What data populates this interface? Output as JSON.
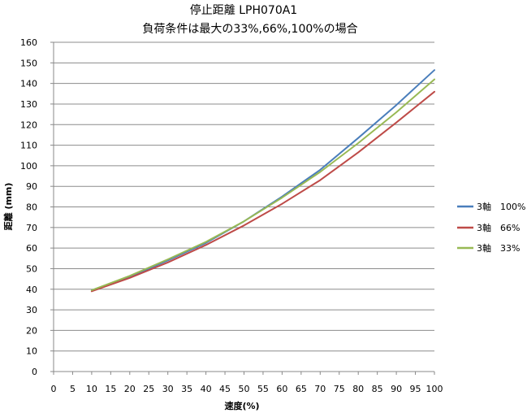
{
  "chart_data": {
    "type": "line",
    "title": "停止距離 LPH070A1",
    "subtitle": "負荷条件は最大の33%,66%,100%の場合",
    "xlabel": "速度(%)",
    "ylabel": "距離 (mm)",
    "xlim": [
      0,
      100
    ],
    "ylim": [
      0,
      160
    ],
    "x_ticks": [
      "0",
      "5",
      "10",
      "15",
      "20",
      "25",
      "30",
      "35",
      "40",
      "45",
      "50",
      "55",
      "60",
      "65",
      "70",
      "75",
      "80",
      "85",
      "90",
      "95",
      "100"
    ],
    "y_ticks": [
      "0",
      "10",
      "20",
      "30",
      "40",
      "50",
      "60",
      "70",
      "80",
      "90",
      "100",
      "110",
      "120",
      "130",
      "140",
      "150",
      "160"
    ],
    "grid": "horizontal",
    "legend_position": "right",
    "series": [
      {
        "name": "3軸　100%",
        "color": "#4a7ebb",
        "x": [
          10,
          20,
          30,
          40,
          50,
          60,
          70,
          80,
          90,
          100
        ],
        "values": [
          39.5,
          46,
          54,
          62.5,
          73,
          85,
          98,
          113.5,
          129.5,
          146.5
        ]
      },
      {
        "name": "3軸　66%",
        "color": "#be4b48",
        "x": [
          10,
          20,
          30,
          40,
          50,
          60,
          70,
          80,
          90,
          100
        ],
        "values": [
          39,
          45.5,
          53,
          61.5,
          71,
          81.5,
          93,
          106.5,
          121,
          136
        ]
      },
      {
        "name": "3軸　33%",
        "color": "#98b954",
        "x": [
          10,
          20,
          30,
          40,
          50,
          60,
          70,
          80,
          90,
          100
        ],
        "values": [
          39.5,
          46.5,
          54.5,
          63,
          73,
          84.5,
          97,
          111,
          126,
          142
        ]
      }
    ]
  }
}
